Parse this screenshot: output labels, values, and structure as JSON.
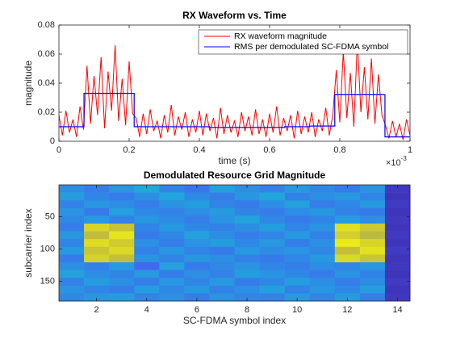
{
  "chart_data": [
    {
      "type": "line",
      "title": "RX Waveform vs. Time",
      "xlabel": "time (s)",
      "ylabel": "magnitude",
      "x_multiplier": "×10",
      "x_multiplier_exponent": "-3",
      "xlim": [
        0,
        1
      ],
      "xticks": [
        0,
        0.2,
        0.4,
        0.6,
        0.8,
        1
      ],
      "ylim": [
        0,
        0.08
      ],
      "yticks": [
        0,
        0.02,
        0.04,
        0.06,
        0.08
      ],
      "legend": "northeast",
      "series": [
        {
          "name": "RX waveform magnitude",
          "color": "#ff0000",
          "x": [
            0,
            0.01,
            0.02,
            0.03,
            0.04,
            0.05,
            0.06,
            0.07,
            0.08,
            0.09,
            0.1,
            0.11,
            0.12,
            0.13,
            0.14,
            0.15,
            0.16,
            0.17,
            0.18,
            0.19,
            0.2,
            0.21,
            0.22,
            0.23,
            0.24,
            0.25,
            0.26,
            0.27,
            0.28,
            0.29,
            0.3,
            0.31,
            0.32,
            0.33,
            0.34,
            0.35,
            0.36,
            0.37,
            0.38,
            0.39,
            0.4,
            0.41,
            0.42,
            0.43,
            0.44,
            0.45,
            0.46,
            0.47,
            0.48,
            0.49,
            0.5,
            0.51,
            0.52,
            0.53,
            0.54,
            0.55,
            0.56,
            0.57,
            0.58,
            0.59,
            0.6,
            0.61,
            0.62,
            0.63,
            0.64,
            0.65,
            0.66,
            0.67,
            0.68,
            0.69,
            0.7,
            0.71,
            0.72,
            0.73,
            0.74,
            0.75,
            0.76,
            0.77,
            0.78,
            0.79,
            0.8,
            0.81,
            0.82,
            0.83,
            0.84,
            0.85,
            0.86,
            0.87,
            0.88,
            0.89,
            0.9,
            0.91,
            0.92,
            0.93,
            0.94,
            0.95,
            0.96,
            0.97,
            0.98,
            0.99,
            1
          ],
          "values": [
            0.018,
            0.004,
            0.021,
            0.006,
            0.015,
            0.003,
            0.024,
            0.008,
            0.052,
            0.012,
            0.045,
            0.018,
            0.058,
            0.009,
            0.048,
            0.021,
            0.066,
            0.014,
            0.043,
            0.011,
            0.055,
            0.019,
            0.016,
            0.003,
            0.019,
            0.005,
            0.022,
            0.007,
            0.014,
            0.002,
            0.018,
            0.006,
            0.025,
            0.004,
            0.017,
            0.008,
            0.02,
            0.003,
            0.015,
            0.006,
            0.021,
            0.004,
            0.019,
            0.007,
            0.016,
            0.002,
            0.023,
            0.005,
            0.018,
            0.006,
            0.014,
            0.003,
            0.02,
            0.007,
            0.017,
            0.004,
            0.022,
            0.005,
            0.015,
            0.003,
            0.019,
            0.006,
            0.024,
            0.004,
            0.016,
            0.007,
            0.018,
            0.002,
            0.021,
            0.005,
            0.017,
            0.006,
            0.02,
            0.003,
            0.015,
            0.007,
            0.023,
            0.004,
            0.018,
            0.049,
            0.013,
            0.062,
            0.016,
            0.047,
            0.01,
            0.069,
            0.02,
            0.051,
            0.015,
            0.057,
            0.012,
            0.046,
            0.018,
            0.011,
            0.002,
            0.014,
            0.003,
            0.012,
            0.001,
            0.015,
            0.004
          ]
        },
        {
          "name": "RMS per demodulated SC-FDMA symbol",
          "color": "#0000ff",
          "x": [
            0,
            0.0714,
            0.0714,
            0.1429,
            0.1429,
            0.2143,
            0.2143,
            0.2857,
            0.2857,
            0.3571,
            0.3571,
            0.4286,
            0.4286,
            0.5,
            0.5,
            0.5714,
            0.5714,
            0.6429,
            0.6429,
            0.7143,
            0.7143,
            0.7857,
            0.7857,
            0.8571,
            0.8571,
            0.9286,
            0.9286,
            1
          ],
          "values": [
            0.01,
            0.01,
            0.033,
            0.033,
            0.033,
            0.033,
            0.01,
            0.01,
            0.01,
            0.01,
            0.01,
            0.01,
            0.0095,
            0.0095,
            0.0095,
            0.0095,
            0.0095,
            0.0095,
            0.01,
            0.01,
            0.0105,
            0.0105,
            0.032,
            0.032,
            0.032,
            0.032,
            0.003,
            0.003
          ]
        }
      ]
    },
    {
      "type": "heatmap",
      "title": "Demodulated Resource Grid Magnitude",
      "xlabel": "SC-FDMA symbol index",
      "ylabel": "subcarrier index",
      "xlim": [
        0.5,
        14.5
      ],
      "xticks": [
        2,
        4,
        6,
        8,
        10,
        12,
        14
      ],
      "ylim": [
        0.5,
        180.5
      ],
      "yticks": [
        50,
        100,
        150
      ],
      "y_reversed": true,
      "clim": [
        0,
        1
      ],
      "colormap": [
        [
          0,
          "#3e26a8"
        ],
        [
          0.2,
          "#4363f2"
        ],
        [
          0.4,
          "#1fa7db"
        ],
        [
          0.6,
          "#33c29c"
        ],
        [
          0.8,
          "#c2bc3a"
        ],
        [
          1,
          "#f9fb0e"
        ]
      ],
      "x": [
        1,
        2,
        3,
        4,
        5,
        6,
        7,
        8,
        9,
        10,
        11,
        12,
        13,
        14
      ],
      "y": [
        6.5,
        18.5,
        30.5,
        42.5,
        54.5,
        66.5,
        78.5,
        90.5,
        102.5,
        114.5,
        126.5,
        138.5,
        150.5,
        162.5,
        174.5
      ],
      "z": [
        [
          0.32,
          0.28,
          0.35,
          0.41,
          0.3,
          0.26,
          0.38,
          0.33,
          0.29,
          0.36,
          0.31,
          0.27,
          0.34,
          0.06
        ],
        [
          0.37,
          0.3,
          0.27,
          0.33,
          0.39,
          0.31,
          0.28,
          0.35,
          0.4,
          0.29,
          0.33,
          0.36,
          0.3,
          0.05
        ],
        [
          0.29,
          0.35,
          0.32,
          0.28,
          0.34,
          0.37,
          0.3,
          0.27,
          0.33,
          0.38,
          0.28,
          0.31,
          0.36,
          0.07
        ],
        [
          0.34,
          0.27,
          0.38,
          0.31,
          0.29,
          0.33,
          0.36,
          0.3,
          0.28,
          0.32,
          0.35,
          0.29,
          0.27,
          0.05
        ],
        [
          0.31,
          0.36,
          0.29,
          0.35,
          0.32,
          0.28,
          0.34,
          0.39,
          0.31,
          0.27,
          0.3,
          0.37,
          0.33,
          0.06
        ],
        [
          0.28,
          0.88,
          0.82,
          0.3,
          0.36,
          0.31,
          0.29,
          0.33,
          0.37,
          0.3,
          0.34,
          0.91,
          0.84,
          0.05
        ],
        [
          0.35,
          0.8,
          0.93,
          0.27,
          0.31,
          0.38,
          0.32,
          0.28,
          0.3,
          0.36,
          0.29,
          0.86,
          0.79,
          0.06
        ],
        [
          0.3,
          0.9,
          0.85,
          0.33,
          0.28,
          0.34,
          0.37,
          0.31,
          0.35,
          0.28,
          0.33,
          0.95,
          0.88,
          0.05
        ],
        [
          0.36,
          0.83,
          0.89,
          0.29,
          0.35,
          0.3,
          0.27,
          0.36,
          0.32,
          0.34,
          0.31,
          0.81,
          0.92,
          0.07
        ],
        [
          0.27,
          0.87,
          0.81,
          0.34,
          0.3,
          0.35,
          0.33,
          0.29,
          0.27,
          0.31,
          0.36,
          0.89,
          0.83,
          0.05
        ],
        [
          0.33,
          0.29,
          0.36,
          0.22,
          0.38,
          0.27,
          0.31,
          0.34,
          0.3,
          0.28,
          0.32,
          0.3,
          0.35,
          0.06
        ],
        [
          0.38,
          0.32,
          0.3,
          0.36,
          0.27,
          0.33,
          0.29,
          0.37,
          0.34,
          0.31,
          0.27,
          0.34,
          0.29,
          0.05
        ],
        [
          0.29,
          0.37,
          0.33,
          0.28,
          0.35,
          0.3,
          0.36,
          0.27,
          0.31,
          0.37,
          0.33,
          0.28,
          0.32,
          0.07
        ],
        [
          0.34,
          0.3,
          0.28,
          0.37,
          0.31,
          0.36,
          0.29,
          0.33,
          0.38,
          0.29,
          0.35,
          0.31,
          0.37,
          0.05
        ],
        [
          0.31,
          0.35,
          0.37,
          0.3,
          0.33,
          0.28,
          0.34,
          0.3,
          0.29,
          0.36,
          0.3,
          0.37,
          0.28,
          0.06
        ]
      ]
    }
  ]
}
